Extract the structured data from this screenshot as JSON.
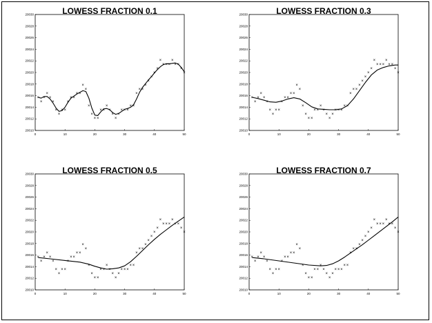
{
  "chart_data": [
    {
      "type": "scatter",
      "title": "LOWESS FRACTION 0.1",
      "xlim": [
        0,
        50
      ],
      "ylim": [
        20010,
        20038
      ],
      "xticks": [
        0,
        10,
        20,
        30,
        40,
        50
      ],
      "yticks": [
        "20010",
        "20012",
        "20014",
        "20016",
        "20018",
        "20020",
        "20022",
        "20024",
        "20026",
        "20028",
        "20030"
      ],
      "points": {
        "x": [
          1,
          2,
          3,
          4,
          5,
          6,
          7,
          8,
          9,
          10,
          11,
          12,
          13,
          14,
          15,
          16,
          17,
          18,
          19,
          20,
          21,
          22,
          23,
          24,
          25,
          26,
          27,
          28,
          29,
          30,
          31,
          32,
          33,
          34,
          35,
          36,
          37,
          38,
          39,
          40,
          41,
          42,
          43,
          44,
          45,
          46,
          47,
          48,
          49,
          50
        ],
        "y": [
          20018,
          20017,
          20018,
          20019,
          20018,
          20017,
          20015,
          20014,
          20015,
          20015,
          20017,
          20018,
          20018,
          20019,
          20019,
          20021,
          20020,
          20016,
          20014,
          20013,
          20013,
          20015,
          20015,
          20016,
          20015,
          20014,
          20013,
          20014,
          20015,
          20015,
          20015,
          20016,
          20016,
          20019,
          20020,
          20020,
          20021,
          20022,
          20023,
          20024,
          20025,
          20027,
          20026,
          20026,
          20026,
          20027,
          20026,
          20026,
          20025,
          20024
        ]
      },
      "fit": {
        "x": [
          1,
          2,
          3,
          4,
          5,
          6,
          7,
          8,
          9,
          10,
          11,
          12,
          13,
          14,
          15,
          16,
          17,
          18,
          19,
          20,
          21,
          22,
          23,
          24,
          25,
          26,
          27,
          28,
          29,
          30,
          31,
          32,
          33,
          34,
          35,
          36,
          37,
          38,
          39,
          40,
          41,
          42,
          43,
          44,
          45,
          46,
          47,
          48,
          49,
          50
        ],
        "y": [
          20018,
          20017.8,
          20018.2,
          20018.2,
          20017.6,
          20016.6,
          20015.4,
          20014.6,
          20014.8,
          20015.6,
          20016.8,
          20017.8,
          20018.3,
          20018.8,
          20019.2,
          20019.6,
          20019.4,
          20017.8,
          20015.4,
          20013.7,
          20013.6,
          20014.5,
          20015.2,
          20015.3,
          20015.0,
          20014.3,
          20013.9,
          20014.1,
          20014.6,
          20015.1,
          20015.3,
          20015.6,
          20016.2,
          20017.6,
          20019.2,
          20020.4,
          20021.3,
          20022.2,
          20023.0,
          20023.9,
          20024.7,
          20025.4,
          20025.9,
          20026.1,
          20026.1,
          20026.2,
          20026.3,
          20026.0,
          20025.2,
          20024.2
        ]
      }
    },
    {
      "type": "scatter",
      "title": "LOWESS FRACTION 0.3",
      "xlim": [
        0,
        50
      ],
      "ylim": [
        20010,
        20038
      ],
      "xticks": [
        0,
        10,
        20,
        30,
        40,
        50
      ],
      "yticks": [
        "20010",
        "20012",
        "20014",
        "20016",
        "20018",
        "20020",
        "20022",
        "20024",
        "20026",
        "20028",
        "20030"
      ],
      "points": {
        "x": [
          1,
          2,
          3,
          4,
          5,
          6,
          7,
          8,
          9,
          10,
          11,
          12,
          13,
          14,
          15,
          16,
          17,
          18,
          19,
          20,
          21,
          22,
          23,
          24,
          25,
          26,
          27,
          28,
          29,
          30,
          31,
          32,
          33,
          34,
          35,
          36,
          37,
          38,
          39,
          40,
          41,
          42,
          43,
          44,
          45,
          46,
          47,
          48,
          49,
          50
        ],
        "y": [
          20018,
          20017,
          20018,
          20019,
          20018,
          20017,
          20015,
          20014,
          20015,
          20015,
          20017,
          20018,
          20018,
          20019,
          20019,
          20021,
          20020,
          20016,
          20014,
          20013,
          20013,
          20015,
          20015,
          20016,
          20015,
          20014,
          20013,
          20014,
          20015,
          20015,
          20015,
          20016,
          20016,
          20019,
          20020,
          20020,
          20021,
          20022,
          20023,
          20024,
          20025,
          20027,
          20026,
          20026,
          20026,
          20027,
          20026,
          20026,
          20025,
          20024
        ]
      },
      "fit": {
        "x": [
          1,
          3,
          5,
          7,
          9,
          11,
          13,
          15,
          17,
          19,
          21,
          23,
          25,
          27,
          29,
          31,
          33,
          35,
          37,
          39,
          41,
          43,
          45,
          47,
          49,
          50
        ],
        "y": [
          20018,
          20017.7,
          20017.3,
          20016.9,
          20016.8,
          20017.1,
          20017.6,
          20017.9,
          20017.6,
          20016.7,
          20015.7,
          20015.2,
          20015.1,
          20015.0,
          20015.0,
          20015.2,
          20016.0,
          20017.6,
          20019.6,
          20021.6,
          20023.4,
          20024.6,
          20025.2,
          20025.6,
          20025.8,
          20025.8
        ]
      }
    },
    {
      "type": "scatter",
      "title": "LOWESS FRACTION 0.5",
      "xlim": [
        0,
        50
      ],
      "ylim": [
        20010,
        20038
      ],
      "xticks": [
        0,
        10,
        20,
        30,
        40,
        50
      ],
      "yticks": [
        "20010",
        "20012",
        "20014",
        "20016",
        "20018",
        "20020",
        "20022",
        "20024",
        "20026",
        "20028",
        "20030"
      ],
      "points": {
        "x": [
          1,
          2,
          3,
          4,
          5,
          6,
          7,
          8,
          9,
          10,
          11,
          12,
          13,
          14,
          15,
          16,
          17,
          18,
          19,
          20,
          21,
          22,
          23,
          24,
          25,
          26,
          27,
          28,
          29,
          30,
          31,
          32,
          33,
          34,
          35,
          36,
          37,
          38,
          39,
          40,
          41,
          42,
          43,
          44,
          45,
          46,
          47,
          48,
          49,
          50
        ],
        "y": [
          20018,
          20017,
          20018,
          20019,
          20018,
          20017,
          20015,
          20014,
          20015,
          20015,
          20017,
          20018,
          20018,
          20019,
          20019,
          20021,
          20020,
          20016,
          20014,
          20013,
          20013,
          20015,
          20015,
          20016,
          20015,
          20014,
          20013,
          20014,
          20015,
          20015,
          20015,
          20016,
          20016,
          20019,
          20020,
          20020,
          20021,
          20022,
          20023,
          20024,
          20025,
          20027,
          20026,
          20026,
          20026,
          20027,
          20026,
          20026,
          20025,
          20024
        ]
      },
      "fit": {
        "x": [
          1,
          5,
          10,
          15,
          18,
          20,
          22,
          24,
          26,
          28,
          30,
          32,
          34,
          36,
          38,
          40,
          42,
          44,
          46,
          48,
          50
        ],
        "y": [
          20017.8,
          20017.5,
          20017.1,
          20016.7,
          20016.2,
          20015.7,
          20015.3,
          20015.0,
          20015.1,
          20015.3,
          20015.8,
          20016.8,
          20018.1,
          20019.5,
          20020.9,
          20022.2,
          20023.4,
          20024.5,
          20025.6,
          20026.6,
          20027.6
        ]
      }
    },
    {
      "type": "scatter",
      "title": "LOWESS FRACTION 0.7",
      "xlim": [
        0,
        50
      ],
      "ylim": [
        20010,
        20038
      ],
      "xticks": [
        0,
        10,
        20,
        30,
        40,
        50
      ],
      "yticks": [
        "20010",
        "20012",
        "20014",
        "20016",
        "20018",
        "20020",
        "20022",
        "20024",
        "20026",
        "20028",
        "20030"
      ],
      "points": {
        "x": [
          1,
          2,
          3,
          4,
          5,
          6,
          7,
          8,
          9,
          10,
          11,
          12,
          13,
          14,
          15,
          16,
          17,
          18,
          19,
          20,
          21,
          22,
          23,
          24,
          25,
          26,
          27,
          28,
          29,
          30,
          31,
          32,
          33,
          34,
          35,
          36,
          37,
          38,
          39,
          40,
          41,
          42,
          43,
          44,
          45,
          46,
          47,
          48,
          49,
          50
        ],
        "y": [
          20018,
          20017,
          20018,
          20019,
          20018,
          20017,
          20015,
          20014,
          20015,
          20015,
          20017,
          20018,
          20018,
          20019,
          20019,
          20021,
          20020,
          20016,
          20014,
          20013,
          20013,
          20015,
          20015,
          20016,
          20015,
          20014,
          20013,
          20014,
          20015,
          20015,
          20015,
          20016,
          20016,
          20019,
          20020,
          20020,
          20021,
          20022,
          20023,
          20024,
          20025,
          20027,
          20026,
          20026,
          20026,
          20027,
          20026,
          20026,
          20025,
          20024
        ]
      },
      "fit": {
        "x": [
          1,
          5,
          10,
          15,
          20,
          24,
          26,
          28,
          30,
          32,
          34,
          36,
          38,
          40,
          42,
          44,
          46,
          48,
          50
        ],
        "y": [
          20017.8,
          20017.5,
          20017.0,
          20016.5,
          20016.0,
          20015.8,
          20015.9,
          20016.3,
          20017.0,
          20017.9,
          20018.9,
          20019.9,
          20020.9,
          20022.0,
          20023.1,
          20024.2,
          20025.3,
          20026.4,
          20027.6
        ]
      }
    }
  ]
}
